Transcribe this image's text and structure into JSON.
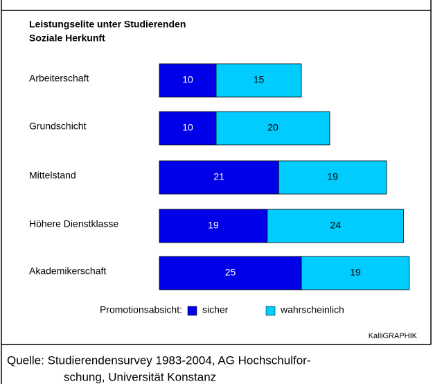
{
  "chart_data": {
    "type": "stacked-bar-horizontal",
    "title": [
      "Leistungselite unter  Studierenden",
      "Soziale Herkunft"
    ],
    "categories": [
      "Arbeiterschaft",
      "Grundschicht",
      "Mittelstand",
      "Höhere Dienstklasse",
      "Akademikerschaft"
    ],
    "series": [
      {
        "name": "sicher",
        "color": "#0000e8",
        "values": [
          10,
          10,
          21,
          19,
          25
        ]
      },
      {
        "name": "wahrscheinlich",
        "color": "#00ccff",
        "values": [
          15,
          20,
          19,
          24,
          19
        ]
      }
    ],
    "legend_title": "Promotionsabsicht:",
    "credit": "KalliGRAPHIK",
    "source": [
      "Quelle:  Studierendensurvey  1983-2004, AG Hochschulfor-",
      "schung, Universität Konstanz"
    ]
  }
}
